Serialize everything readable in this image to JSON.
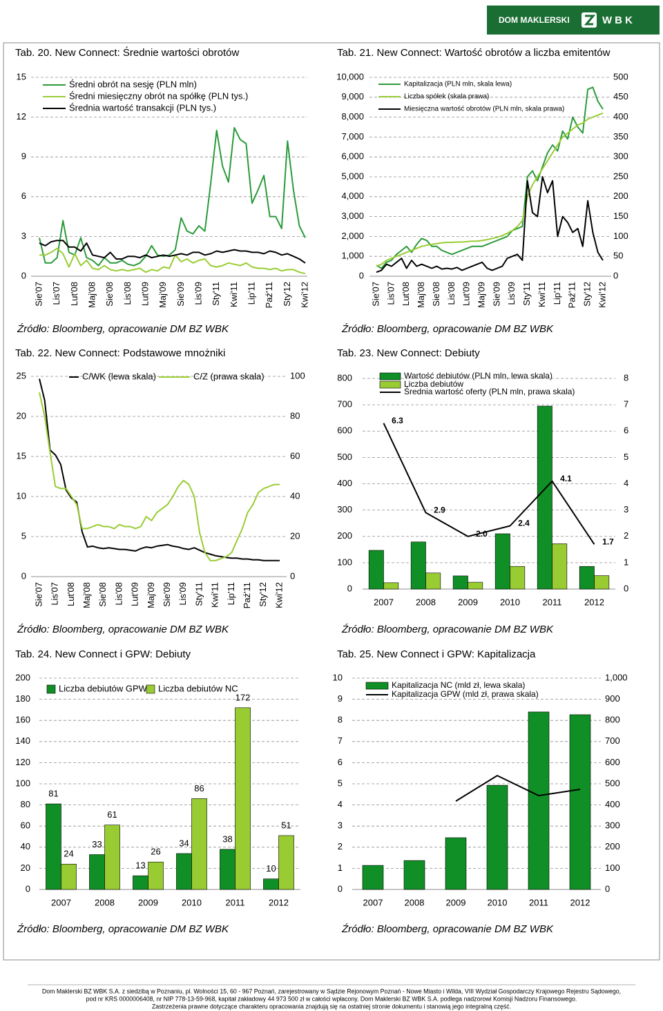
{
  "header": {
    "brand": "DOM MAKLERSKI",
    "logo": "WBK"
  },
  "chart_data": [
    {
      "type": "line",
      "title": "Tab. 20. New Connect: Średnie wartości obrotów",
      "source": "Źródło: Bloomberg, opracowanie DM BZ WBK",
      "grid": true,
      "categories": [
        "Sie'07",
        null,
        null,
        "Lis'07",
        null,
        null,
        "Lut'08",
        null,
        null,
        "Maj'08",
        null,
        null,
        "Sie'08",
        null,
        null,
        "Lis'08",
        null,
        null,
        "Lut'09",
        null,
        null,
        "Maj'09",
        null,
        null,
        "Sie'09",
        null,
        null,
        "Lis'09",
        null,
        null,
        "Sty'11",
        null,
        null,
        "Kwi'11",
        null,
        null,
        "Lip'11",
        null,
        null,
        "Paź'11",
        null,
        null,
        "Sty'12",
        null,
        null,
        "Kwi'12"
      ],
      "ylim": [
        0,
        15
      ],
      "yticks": [
        0,
        3,
        6,
        9,
        12,
        15
      ],
      "series": [
        {
          "name": "Średni obrót na sesję (PLN mln)",
          "color": "#2a9a3a",
          "values": [
            2.9,
            1.0,
            1.0,
            1.4,
            4.2,
            1.8,
            1.6,
            2.9,
            1.4,
            1.2,
            0.8,
            1.4,
            1.0,
            1.0,
            1.2,
            0.9,
            0.8,
            1.0,
            1.5,
            2.3,
            1.6,
            1.5,
            1.6,
            2.0,
            4.4,
            3.4,
            3.2,
            3.8,
            3.4,
            7.0,
            11.0,
            8.3,
            7.1,
            11.2,
            10.3,
            10.0,
            5.5,
            6.5,
            7.6,
            4.5,
            4.5,
            3.6,
            10.2,
            6.5,
            3.8,
            2.9
          ]
        },
        {
          "name": "Średni miesięczny obrót na spółkę (PLN tys.)",
          "color": "#99cc33",
          "values": [
            1.6,
            1.6,
            1.8,
            2.1,
            1.7,
            0.7,
            1.7,
            0.8,
            1.2,
            0.6,
            0.5,
            0.8,
            0.5,
            0.4,
            0.5,
            0.4,
            0.5,
            0.6,
            0.3,
            0.5,
            0.4,
            0.7,
            0.6,
            1.6,
            1.1,
            1.3,
            1.0,
            1.2,
            1.3,
            0.8,
            0.7,
            0.8,
            1.0,
            0.9,
            0.8,
            1.0,
            0.7,
            0.6,
            0.6,
            0.5,
            0.6,
            0.4,
            0.5,
            0.5,
            0.3,
            0.2
          ]
        },
        {
          "name": "Średnia wartość transakcji (PLN tys.)",
          "color": "#000000",
          "values": [
            2.5,
            2.3,
            2.6,
            2.7,
            2.7,
            2.2,
            2.2,
            1.9,
            2.5,
            1.6,
            1.5,
            1.4,
            1.8,
            1.3,
            1.3,
            1.5,
            1.5,
            1.4,
            1.6,
            1.4,
            1.5,
            1.6,
            1.5,
            1.6,
            1.7,
            1.6,
            1.8,
            1.8,
            1.6,
            1.7,
            1.9,
            1.8,
            1.9,
            2.0,
            1.9,
            1.9,
            1.8,
            1.8,
            1.7,
            1.9,
            1.8,
            1.6,
            1.7,
            1.5,
            1.3,
            1.0
          ]
        }
      ]
    },
    {
      "type": "line",
      "title": "Tab. 21. New Connect: Wartość obrotów a liczba emitentów",
      "source": "Źródło: Bloomberg, opracowanie DM BZ WBK",
      "grid": true,
      "categories": [
        "Sie'07",
        null,
        null,
        "Lis'07",
        null,
        null,
        "Lut'08",
        null,
        null,
        "Maj'08",
        null,
        null,
        "Sie'08",
        null,
        null,
        "Lis'08",
        null,
        null,
        "Lut'09",
        null,
        null,
        "Maj'09",
        null,
        null,
        "Sie'09",
        null,
        null,
        "Lis'09",
        null,
        null,
        "Sty'11",
        null,
        null,
        "Kwi'11",
        null,
        null,
        "Lip'11",
        null,
        null,
        "Paź'11",
        null,
        null,
        "Sty'12",
        null,
        null,
        "Kwi'12"
      ],
      "ylim": [
        0,
        10000
      ],
      "yticks": [
        0,
        {
          "value": 1000,
          "label": "1,000"
        },
        {
          "value": 2000,
          "label": "2,000"
        },
        {
          "value": 3000,
          "label": "3,000"
        },
        {
          "value": 4000,
          "label": "4,000"
        },
        {
          "value": 5000,
          "label": "5,000"
        },
        {
          "value": 6000,
          "label": "6,000"
        },
        {
          "value": 7000,
          "label": "7,000"
        },
        {
          "value": 8000,
          "label": "8,000"
        },
        {
          "value": 9000,
          "label": "9,000"
        },
        {
          "value": 10000,
          "label": "10,000"
        }
      ],
      "y2lim": [
        0,
        500
      ],
      "y2ticks": [
        0,
        50,
        100,
        150,
        200,
        250,
        300,
        350,
        400,
        450,
        500
      ],
      "series": [
        {
          "name": "Kapitalizacja (PLN mln, skala lewa)",
          "color": "#2a9a3a",
          "values": [
            550,
            400,
            700,
            800,
            1100,
            1300,
            1500,
            1200,
            1600,
            1900,
            1800,
            1500,
            1500,
            1300,
            1200,
            1100,
            1200,
            1300,
            1400,
            1500,
            1500,
            1500,
            1600,
            1700,
            1800,
            1900,
            2000,
            2300,
            2400,
            2500,
            5000,
            5300,
            4800,
            5500,
            6200,
            6600,
            6300,
            7300,
            6900,
            8000,
            7500,
            7200,
            9400,
            9500,
            8800,
            8400
          ]
        },
        {
          "name": "Liczba spółek (skala prawa)",
          "color": "#99cc33",
          "axis": "y2",
          "values": [
            25,
            30,
            40,
            45,
            50,
            55,
            60,
            65,
            70,
            75,
            78,
            80,
            82,
            84,
            85,
            85,
            86,
            86,
            87,
            88,
            88,
            90,
            92,
            95,
            98,
            102,
            108,
            115,
            125,
            140,
            200,
            230,
            250,
            270,
            290,
            310,
            330,
            350,
            360,
            370,
            380,
            385,
            395,
            400,
            405,
            410
          ]
        },
        {
          "name": "Miesięczna wartość obrotów (PLN mln, skala prawa)",
          "color": "#000000",
          "axis": "y2",
          "values": [
            10,
            15,
            30,
            25,
            35,
            45,
            20,
            40,
            25,
            30,
            25,
            20,
            25,
            18,
            20,
            18,
            22,
            15,
            20,
            25,
            30,
            35,
            20,
            15,
            20,
            25,
            45,
            50,
            55,
            40,
            240,
            160,
            150,
            250,
            210,
            240,
            100,
            150,
            135,
            110,
            120,
            75,
            190,
            110,
            60,
            40
          ]
        }
      ]
    },
    {
      "type": "line",
      "title": "Tab. 22. New Connect: Podstawowe mnożniki",
      "source": "Źródło: Bloomberg, opracowanie DM BZ WBK",
      "grid": true,
      "categories": [
        "Sie'07",
        null,
        null,
        "Lis'07",
        null,
        null,
        "Lut'08",
        null,
        null,
        "Maj'08",
        null,
        null,
        "Sie'08",
        null,
        null,
        "Lis'08",
        null,
        null,
        "Lut'09",
        null,
        null,
        "Maj'09",
        null,
        null,
        "Sie'09",
        null,
        null,
        "Lis'09",
        null,
        null,
        "Sty'11",
        null,
        null,
        "Kwi'11",
        null,
        null,
        "Lip'11",
        null,
        null,
        "Paź'11",
        null,
        null,
        "Sty'12",
        null,
        null,
        "Kwi'12"
      ],
      "ylim": [
        0,
        25
      ],
      "yticks": [
        0,
        5,
        10,
        15,
        20,
        25
      ],
      "y2lim": [
        0,
        100
      ],
      "y2ticks": [
        0,
        20,
        40,
        60,
        80,
        100
      ],
      "series": [
        {
          "name": "C/WK (lewa skala)",
          "color": "#000000",
          "values": [
            24.7,
            22.0,
            15.8,
            15.2,
            14.0,
            10.8,
            9.8,
            9.3,
            5.6,
            3.7,
            3.8,
            3.6,
            3.5,
            3.6,
            3.5,
            3.4,
            3.4,
            3.3,
            3.2,
            3.5,
            3.7,
            3.6,
            3.8,
            3.9,
            4.0,
            3.8,
            3.7,
            3.5,
            3.4,
            3.6,
            3.3,
            3.0,
            2.8,
            2.6,
            2.5,
            2.4,
            2.3,
            2.3,
            2.2,
            2.2,
            2.1,
            2.1,
            2.0,
            2.0,
            2.0,
            2.0
          ]
        },
        {
          "name": "C/Z (prawa skala)",
          "color": "#99cc33",
          "axis": "y2",
          "values": [
            92,
            80,
            62,
            45,
            44,
            44,
            40,
            36,
            24,
            24,
            25,
            26,
            25,
            25,
            24,
            26,
            25,
            25,
            24,
            25,
            30,
            28,
            32,
            34,
            36,
            40,
            45,
            48,
            46,
            40,
            22,
            12,
            8,
            8,
            9,
            10,
            12,
            18,
            24,
            32,
            36,
            42,
            44,
            45,
            46,
            46
          ]
        }
      ]
    },
    {
      "type": "bar",
      "title": "Tab. 23. New Connect: Debiuty",
      "source": "Źródło: Bloomberg, opracowanie DM BZ WBK",
      "grid": true,
      "categories": [
        "2007",
        "2008",
        "2009",
        "2010",
        "2011",
        "2012"
      ],
      "ylim": [
        0,
        800
      ],
      "yticks": [
        0,
        100,
        200,
        300,
        400,
        500,
        600,
        700,
        800
      ],
      "y2lim": [
        0,
        8
      ],
      "y2ticks": [
        0,
        1,
        2,
        3,
        4,
        5,
        6,
        7,
        8
      ],
      "series": [
        {
          "name": "Wartość debiutów (PLN mln, lewa skala)",
          "color": "#0f8f25",
          "values": [
            147,
            179,
            50,
            210,
            695,
            86
          ]
        },
        {
          "name": "Liczba debiutów",
          "color": "#99cc33",
          "values": [
            24,
            61,
            26,
            86,
            172,
            51
          ]
        },
        {
          "name": "Średnia wartość oferty (PLN mln, prawa skala)",
          "color": "#000000",
          "type": "line",
          "axis": "y2",
          "values": [
            6.3,
            2.9,
            2.0,
            2.4,
            4.1,
            1.7
          ],
          "value_labels": [
            "6.3",
            "2.9",
            "2.0",
            "2.4",
            "4.1",
            "1.7"
          ]
        }
      ]
    },
    {
      "type": "bar",
      "title": "Tab. 24. New Connect i GPW: Debiuty",
      "source": "Źródło: Bloomberg, opracowanie DM BZ WBK",
      "grid": true,
      "data_labels": true,
      "categories": [
        "2007",
        "2008",
        "2009",
        "2010",
        "2011",
        "2012"
      ],
      "ylim": [
        0,
        200
      ],
      "yticks": [
        0,
        20,
        40,
        60,
        80,
        100,
        120,
        140,
        160,
        180,
        200
      ],
      "series": [
        {
          "name": "Liczba debiutów GPW",
          "color": "#0f8f25",
          "values": [
            81,
            33,
            13,
            34,
            38,
            10
          ]
        },
        {
          "name": "Liczba debiutów NC",
          "color": "#99cc33",
          "values": [
            24,
            61,
            26,
            86,
            172,
            51
          ]
        }
      ]
    },
    {
      "type": "bar",
      "title": "Tab. 25. New Connect i GPW: Kapitalizacja",
      "source": "Źródło: Bloomberg, opracowanie DM BZ WBK",
      "grid": true,
      "categories": [
        "2007",
        "2008",
        "2009",
        "2010",
        "2011",
        "2012"
      ],
      "ylim": [
        0,
        10
      ],
      "yticks": [
        0,
        1,
        2,
        3,
        4,
        5,
        6,
        7,
        8,
        9,
        10
      ],
      "y2lim": [
        0,
        1000
      ],
      "y2ticks": [
        0,
        100,
        200,
        300,
        400,
        500,
        600,
        700,
        800,
        900,
        {
          "value": 1000,
          "label": "1,000"
        }
      ],
      "series": [
        {
          "name": "Kapitalizacja NC (mld zł, lewa skala)",
          "color": "#0f8f25",
          "values": [
            1.14,
            1.37,
            2.45,
            4.93,
            8.4,
            8.27
          ]
        },
        {
          "name": "Kapitalizacja GPW (mld zł, prawa skala)",
          "color": "#000000",
          "type": "line",
          "axis": "y2",
          "values": [
            null,
            null,
            418,
            539,
            444,
            474
          ]
        }
      ]
    }
  ],
  "footer": {
    "lines": [
      "Dom Maklerski BZ WBK S.A. z siedzibą w Poznaniu, pl. Wolności 15, 60 - 967 Poznań, zarejestrowany w Sądzie Rejonowym Poznań - Nowe Miasto i Wilda, VIII Wydział Gospodarczy Krajowego Rejestru Sądowego,",
      "pod nr KRS 0000006408, nr NIP 778-13-59-968, kapitał zakładowy 44 973 500 zł w całości wpłacony. Dom Maklerski BZ WBK S.A. podlega nadzorowi Komisji Nadzoru Finansowego.",
      "Zastrzeżenia prawne dotyczące charakteru opracowania znajdują się na ostatniej stronie dokumentu i stanowią jego integralną część."
    ]
  }
}
